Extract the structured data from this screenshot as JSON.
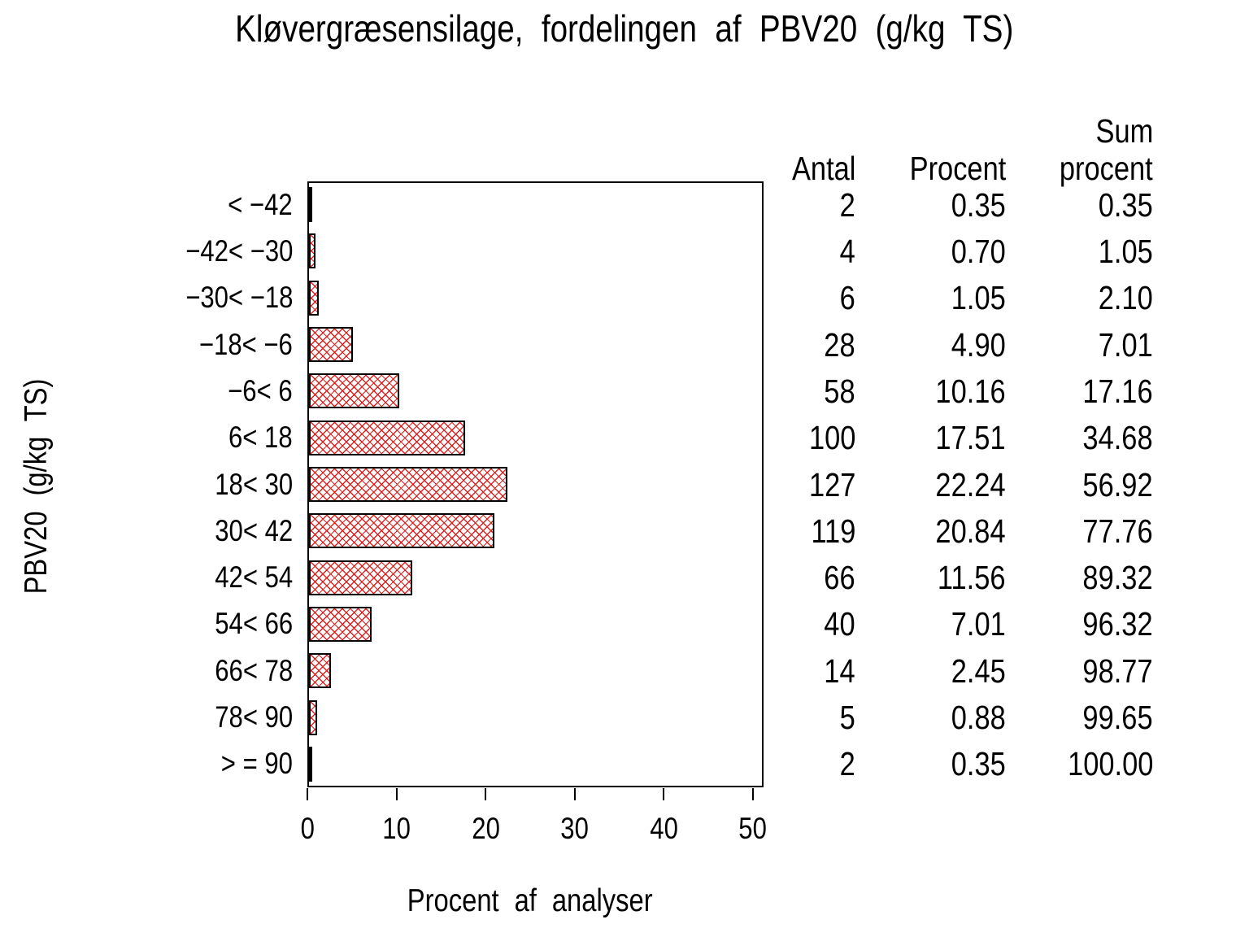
{
  "title": "Kløvergræsensilage, fordelingen af PBV20 (g/kg TS)",
  "axes": {
    "xlabel": "Procent af analyser",
    "ylabel": "PBV20 (g/kg TS)",
    "xticks": [
      0,
      10,
      20,
      30,
      40,
      50
    ]
  },
  "table": {
    "col_antal": "Antal",
    "col_procent": "Procent",
    "col_sum_line1": "Sum",
    "col_sum_line2": "procent",
    "rows": [
      {
        "antal": "2",
        "procent": "0.35",
        "sum": "0.35"
      },
      {
        "antal": "4",
        "procent": "0.70",
        "sum": "1.05"
      },
      {
        "antal": "6",
        "procent": "1.05",
        "sum": "2.10"
      },
      {
        "antal": "28",
        "procent": "4.90",
        "sum": "7.01"
      },
      {
        "antal": "58",
        "procent": "10.16",
        "sum": "17.16"
      },
      {
        "antal": "100",
        "procent": "17.51",
        "sum": "34.68"
      },
      {
        "antal": "127",
        "procent": "22.24",
        "sum": "56.92"
      },
      {
        "antal": "119",
        "procent": "20.84",
        "sum": "77.76"
      },
      {
        "antal": "66",
        "procent": "11.56",
        "sum": "89.32"
      },
      {
        "antal": "40",
        "procent": "7.01",
        "sum": "96.32"
      },
      {
        "antal": "14",
        "procent": "2.45",
        "sum": "98.77"
      },
      {
        "antal": "5",
        "procent": "0.88",
        "sum": "99.65"
      },
      {
        "antal": "2",
        "procent": "0.35",
        "sum": "100.00"
      }
    ]
  },
  "chart_data": {
    "type": "bar",
    "orientation": "horizontal",
    "title": "Kløvergræsensilage, fordelingen af PBV20 (g/kg TS)",
    "xlabel": "Procent af analyser",
    "ylabel": "PBV20 (g/kg TS)",
    "xlim": [
      0,
      51.2
    ],
    "xticks": [
      0,
      10,
      20,
      30,
      40,
      50
    ],
    "grid": false,
    "legend": "none",
    "bar_style": "red diagonal crosshatch on white, black outline",
    "bar_color": "#dd2222",
    "categories": [
      "< −42",
      "−42< −30",
      "−30< −18",
      "−18< −6",
      "−6< 6",
      "6< 18",
      "18< 30",
      "30< 42",
      "42< 54",
      "54< 66",
      "66< 78",
      "78< 90",
      "> = 90"
    ],
    "series": [
      {
        "name": "Procent af analyser",
        "values": [
          0.35,
          0.7,
          1.05,
          4.9,
          10.16,
          17.51,
          22.24,
          20.84,
          11.56,
          7.01,
          2.45,
          0.88,
          0.35
        ]
      },
      {
        "name": "Antal",
        "values": [
          2,
          4,
          6,
          28,
          58,
          100,
          127,
          119,
          66,
          40,
          14,
          5,
          2
        ]
      },
      {
        "name": "Sum procent",
        "values": [
          0.35,
          1.05,
          2.1,
          7.01,
          17.16,
          34.68,
          56.92,
          77.76,
          89.32,
          96.32,
          98.77,
          99.65,
          100.0
        ]
      }
    ]
  }
}
